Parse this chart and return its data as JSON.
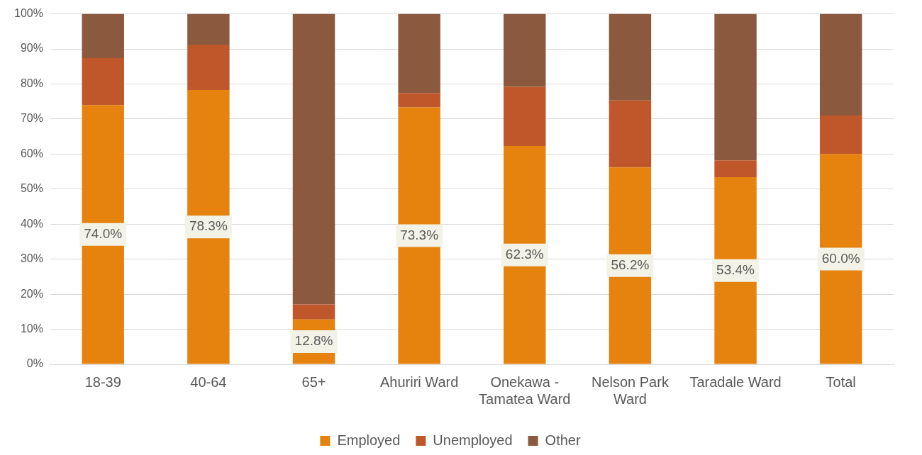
{
  "chart_data": {
    "type": "bar",
    "stacked": true,
    "categories": [
      "18-39",
      "40-64",
      "65+",
      "Ahuriri Ward",
      "Onekawa - Tamatea Ward",
      "Nelson Park Ward",
      "Taradale Ward",
      "Total"
    ],
    "series": [
      {
        "name": "Employed",
        "color": "#e6820e",
        "values": [
          74.0,
          78.3,
          12.8,
          73.3,
          62.3,
          56.2,
          53.4,
          60.0
        ],
        "value_labels": [
          "74.0%",
          "78.3%",
          "12.8%",
          "73.3%",
          "62.3%",
          "56.2%",
          "53.4%",
          "60.0%"
        ]
      },
      {
        "name": "Unemployed",
        "color": "#c0572a",
        "values": [
          13.4,
          12.9,
          4.3,
          4.1,
          16.9,
          19.1,
          4.8,
          11.0
        ]
      },
      {
        "name": "Other",
        "color": "#8b5a3e",
        "values": [
          12.6,
          8.8,
          82.9,
          22.6,
          20.8,
          24.7,
          41.8,
          29.0
        ]
      }
    ],
    "ylim": [
      0,
      100
    ],
    "yticks": [
      {
        "value": 0,
        "label": "0%"
      },
      {
        "value": 10,
        "label": "10%"
      },
      {
        "value": 20,
        "label": "20%"
      },
      {
        "value": 30,
        "label": "30%"
      },
      {
        "value": 40,
        "label": "40%"
      },
      {
        "value": 50,
        "label": "50%"
      },
      {
        "value": 60,
        "label": "60%"
      },
      {
        "value": 70,
        "label": "70%"
      },
      {
        "value": 80,
        "label": "80%"
      },
      {
        "value": 90,
        "label": "90%"
      },
      {
        "value": 100,
        "label": "100%"
      }
    ],
    "grid": "y",
    "legend": "bottom"
  }
}
